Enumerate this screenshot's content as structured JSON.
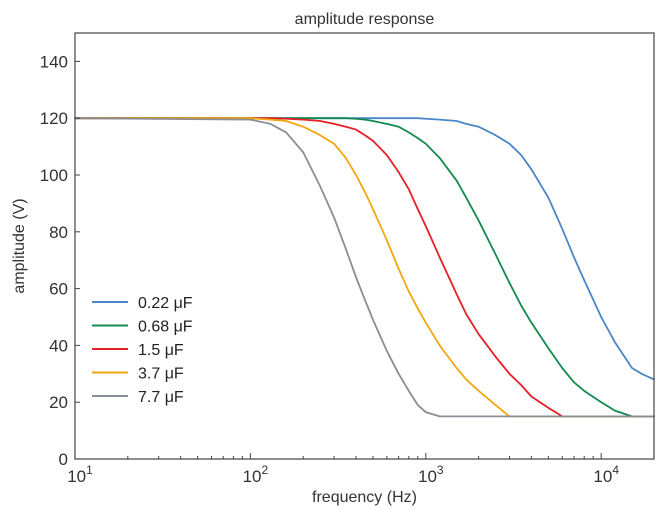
{
  "chart_data": {
    "type": "line",
    "title": "amplitude response",
    "xlabel": "frequency (Hz)",
    "ylabel": "amplitude (V)",
    "xscale": "log",
    "xlim": [
      10,
      20000
    ],
    "ylim": [
      0,
      150
    ],
    "grid": false,
    "legend_position": "bottom-left",
    "x_ticks": [
      {
        "value": 10,
        "mantissa": "10",
        "exponent": "1"
      },
      {
        "value": 100,
        "mantissa": "10",
        "exponent": "2"
      },
      {
        "value": 1000,
        "mantissa": "10",
        "exponent": "3"
      },
      {
        "value": 10000,
        "mantissa": "10",
        "exponent": "4"
      }
    ],
    "y_ticks": [
      "0",
      "20",
      "40",
      "60",
      "80",
      "100",
      "120",
      "140"
    ],
    "x": [
      10,
      100,
      130,
      160,
      200,
      250,
      300,
      350,
      400,
      450,
      500,
      600,
      700,
      800,
      900,
      1000,
      1200,
      1500,
      1700,
      2000,
      2500,
      3000,
      3500,
      4000,
      5000,
      6000,
      7000,
      8000,
      10000,
      12000,
      15000,
      17000,
      20000
    ],
    "series": [
      {
        "name": "0.22 μF",
        "color": "#4a86c8",
        "values": [
          120,
          120,
          120,
          120,
          120,
          120,
          120,
          120,
          120,
          120,
          120,
          120,
          120,
          120,
          120,
          119.8,
          119.5,
          119,
          118,
          117,
          114,
          111,
          107,
          102,
          92,
          81,
          71,
          63,
          50,
          41,
          32,
          30,
          28
        ]
      },
      {
        "name": "0.68 μF",
        "color": "#138a4e",
        "values": [
          120,
          120,
          120,
          120,
          120,
          120,
          120,
          120,
          119.8,
          119.5,
          119,
          118,
          117,
          115,
          113,
          111,
          106,
          98,
          92,
          84,
          72,
          62,
          54,
          48,
          39,
          32,
          27,
          24,
          20,
          17,
          15,
          15,
          15
        ]
      },
      {
        "name": "1.5 μF",
        "color": "#e41f25",
        "values": [
          120,
          120,
          120,
          119.8,
          119.5,
          119,
          118,
          117,
          116,
          114,
          112,
          107,
          101,
          95,
          88,
          82,
          71,
          58,
          51,
          44,
          36,
          30,
          26,
          22,
          18,
          15,
          15,
          15,
          15,
          15,
          15,
          15,
          15
        ]
      },
      {
        "name": "3.7 μF",
        "color": "#f2a60f",
        "values": [
          120,
          120,
          119.5,
          119,
          117,
          114,
          111,
          106,
          100,
          94,
          88,
          77,
          67,
          59,
          53,
          48,
          40,
          32,
          28,
          24,
          19,
          15,
          15,
          15,
          15,
          15,
          15,
          15,
          15,
          15,
          15,
          15,
          15
        ]
      },
      {
        "name": "7.7 μF",
        "color": "#8a8c96",
        "values": [
          120,
          119.5,
          118,
          115,
          108,
          96,
          85,
          74,
          64,
          56,
          49,
          38,
          30,
          24,
          19,
          16.5,
          15,
          15,
          15,
          15,
          15,
          15,
          15,
          15,
          15,
          15,
          15,
          15,
          15,
          15,
          15,
          15,
          15
        ]
      }
    ]
  }
}
